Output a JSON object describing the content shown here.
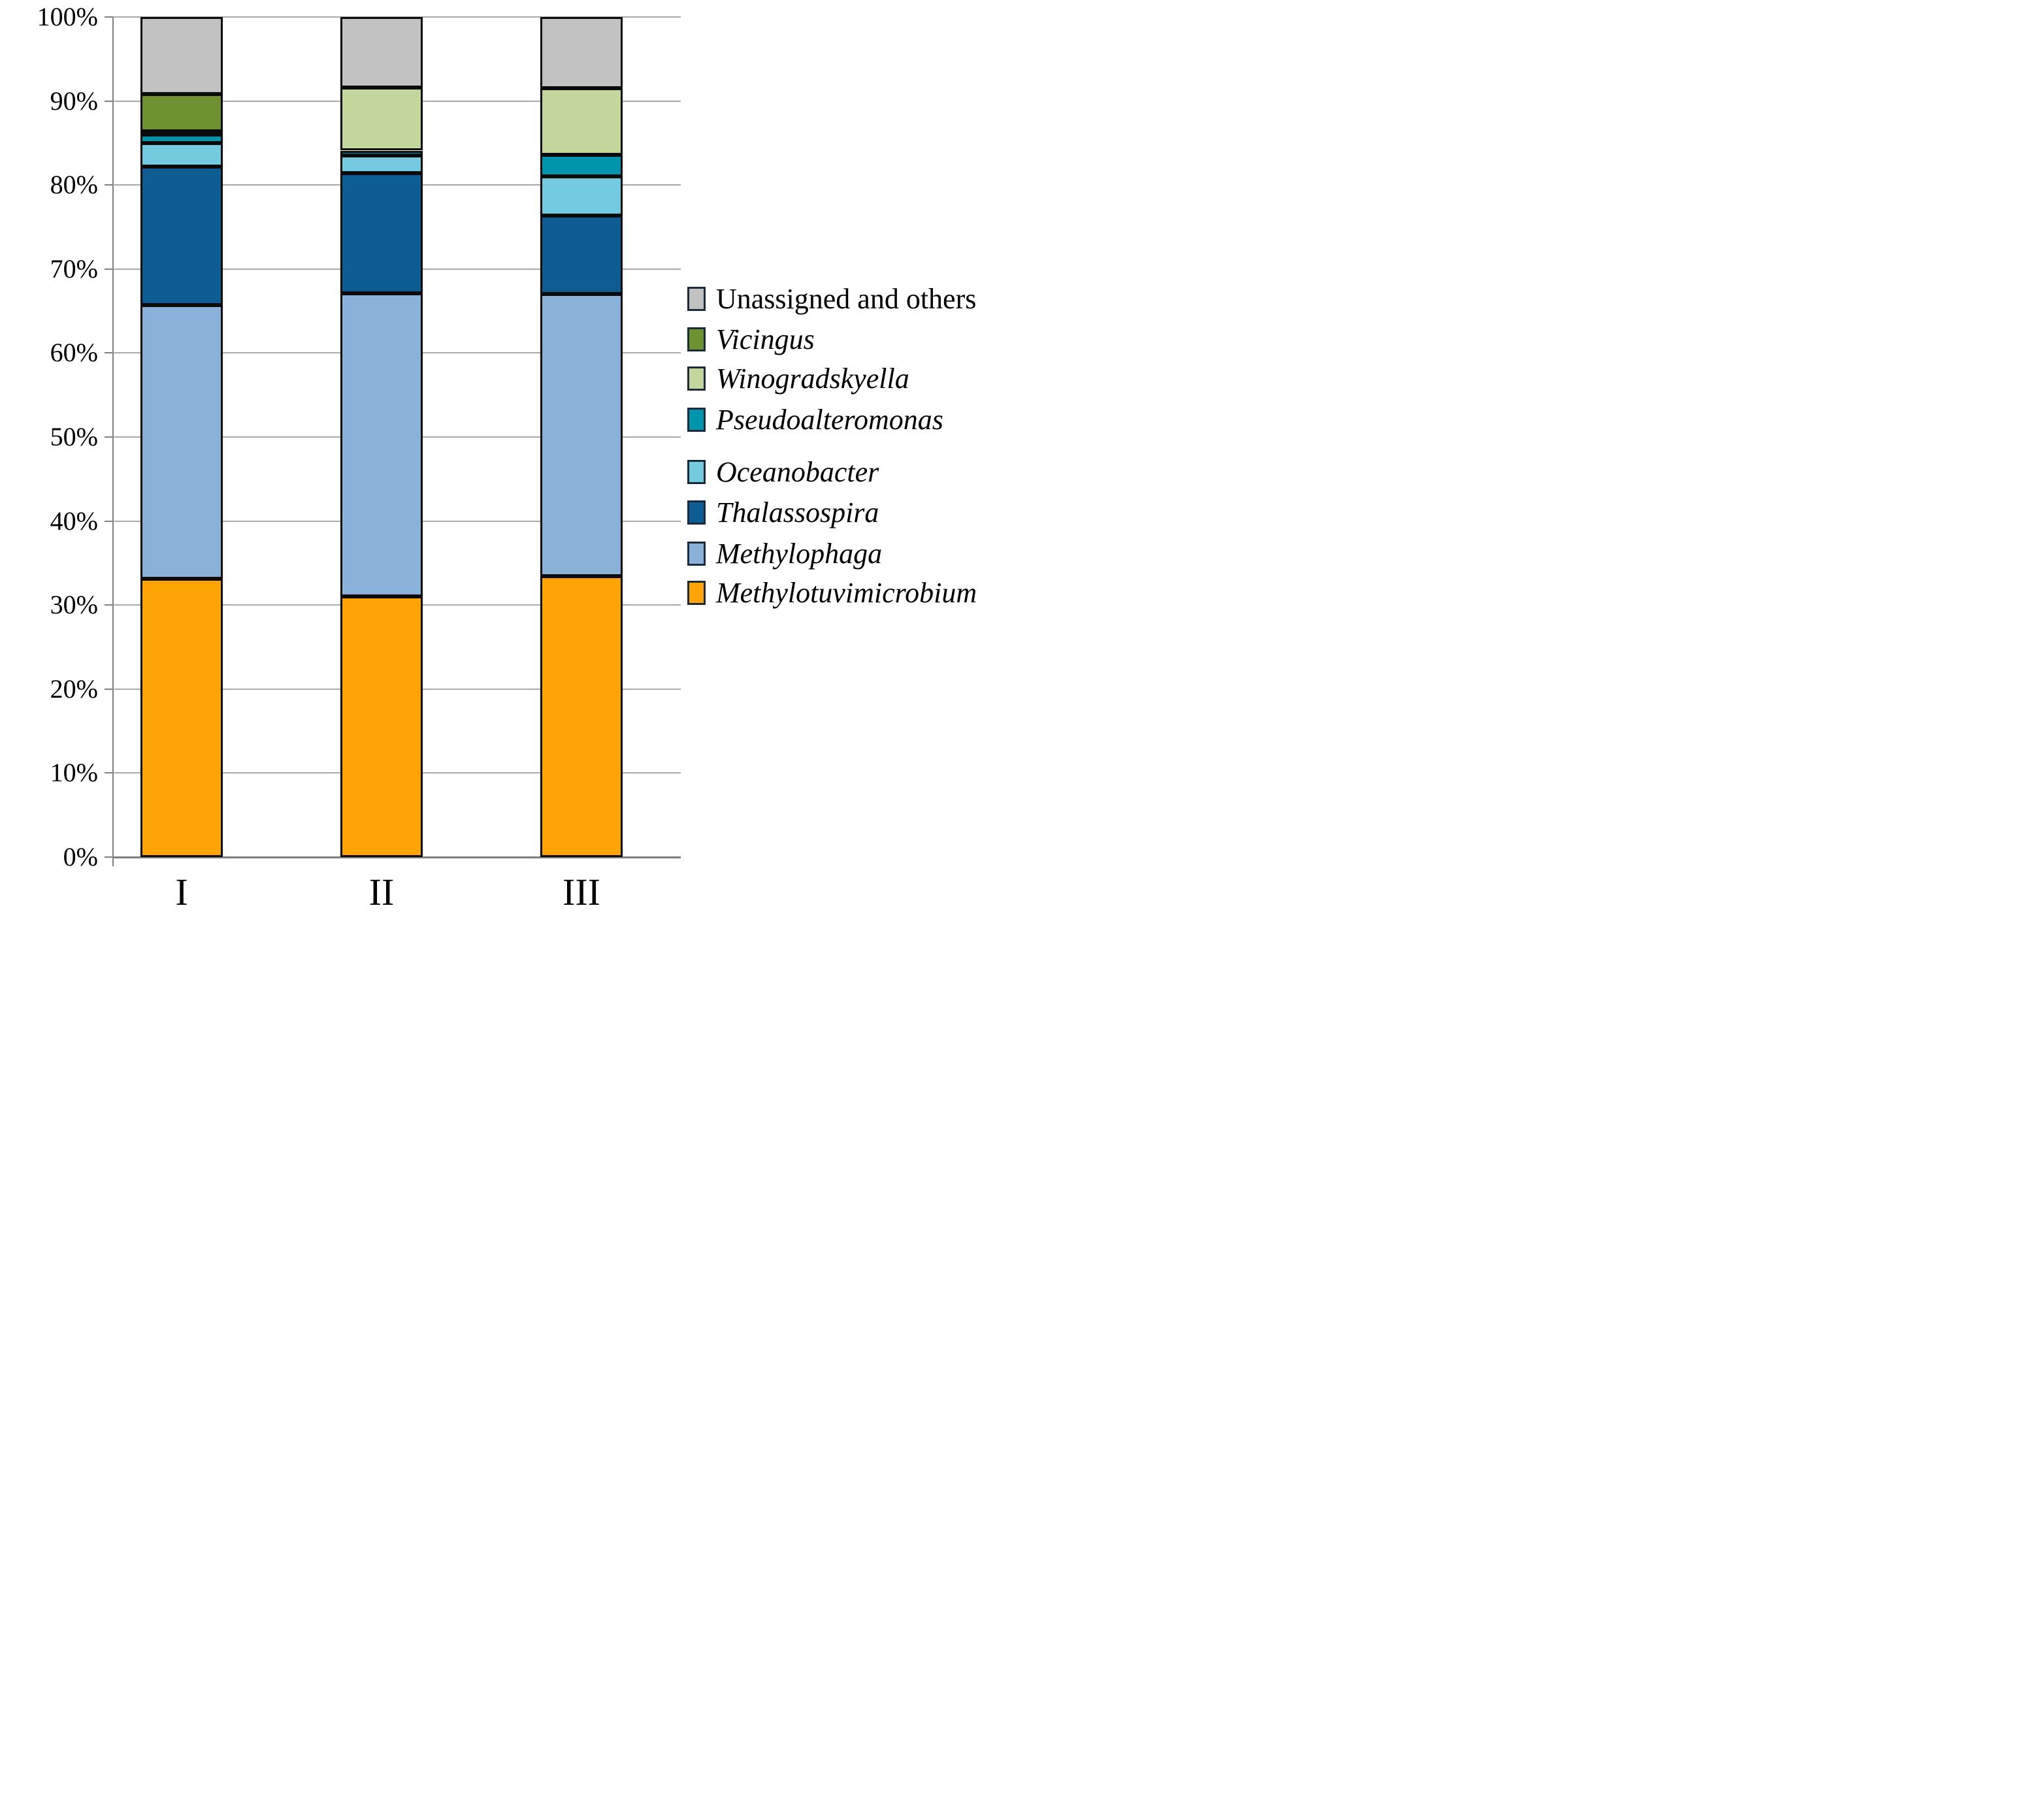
{
  "chart_data": {
    "type": "bar",
    "subtype": "stacked-percent-column",
    "categories": [
      "I",
      "II",
      "III"
    ],
    "series": [
      {
        "name": "Methylotuvimicrobium",
        "color": "#FFA404",
        "italic": true,
        "values": [
          33.1,
          31.0,
          33.4
        ]
      },
      {
        "name": "Methylophaga",
        "color": "#8AB2D8",
        "italic": true,
        "values": [
          32.6,
          36.1,
          33.6
        ]
      },
      {
        "name": "Thalassospira",
        "color": "#0E5C94",
        "italic": true,
        "values": [
          16.5,
          14.3,
          9.4
        ]
      },
      {
        "name": "Oceanobacter",
        "color": "#74CBE0",
        "italic": true,
        "values": [
          2.8,
          2.1,
          4.6
        ]
      },
      {
        "name": "Pseudoalteromonas",
        "color": "#0095AC",
        "italic": true,
        "values": [
          1.0,
          0.6,
          2.6
        ]
      },
      {
        "name": "Winogradskyella",
        "color": "#C3D69B",
        "italic": true,
        "values": [
          0.4,
          7.5,
          7.9
        ]
      },
      {
        "name": "Vicingus",
        "color": "#6E9232",
        "italic": true,
        "values": [
          4.4,
          0,
          0
        ]
      },
      {
        "name": "Unassigned and others",
        "color": "#C2C2C2",
        "italic": false,
        "values": [
          9.2,
          8.4,
          8.5
        ]
      }
    ],
    "title": "",
    "xlabel": "",
    "ylabel": "",
    "ylim": [
      0,
      100
    ],
    "ytick_labels": [
      "0%",
      "10%",
      "20%",
      "30%",
      "40%",
      "50%",
      "60%",
      "70%",
      "80%",
      "90%",
      "100%"
    ],
    "grid": true,
    "legend_position": "right",
    "legend_order_top_to_bottom": [
      "Unassigned and others",
      "Vicingus",
      "Winogradskyella",
      "Pseudoalteromonas",
      "Oceanobacter",
      "Thalassospira",
      "Methylophaga",
      "Methylotuvimicrobium"
    ]
  },
  "colors": {
    "gridline": "#a9a9a9",
    "axis": "#7f7f7f",
    "segment_border": "#0b0b0b",
    "background": "#ffffff"
  }
}
